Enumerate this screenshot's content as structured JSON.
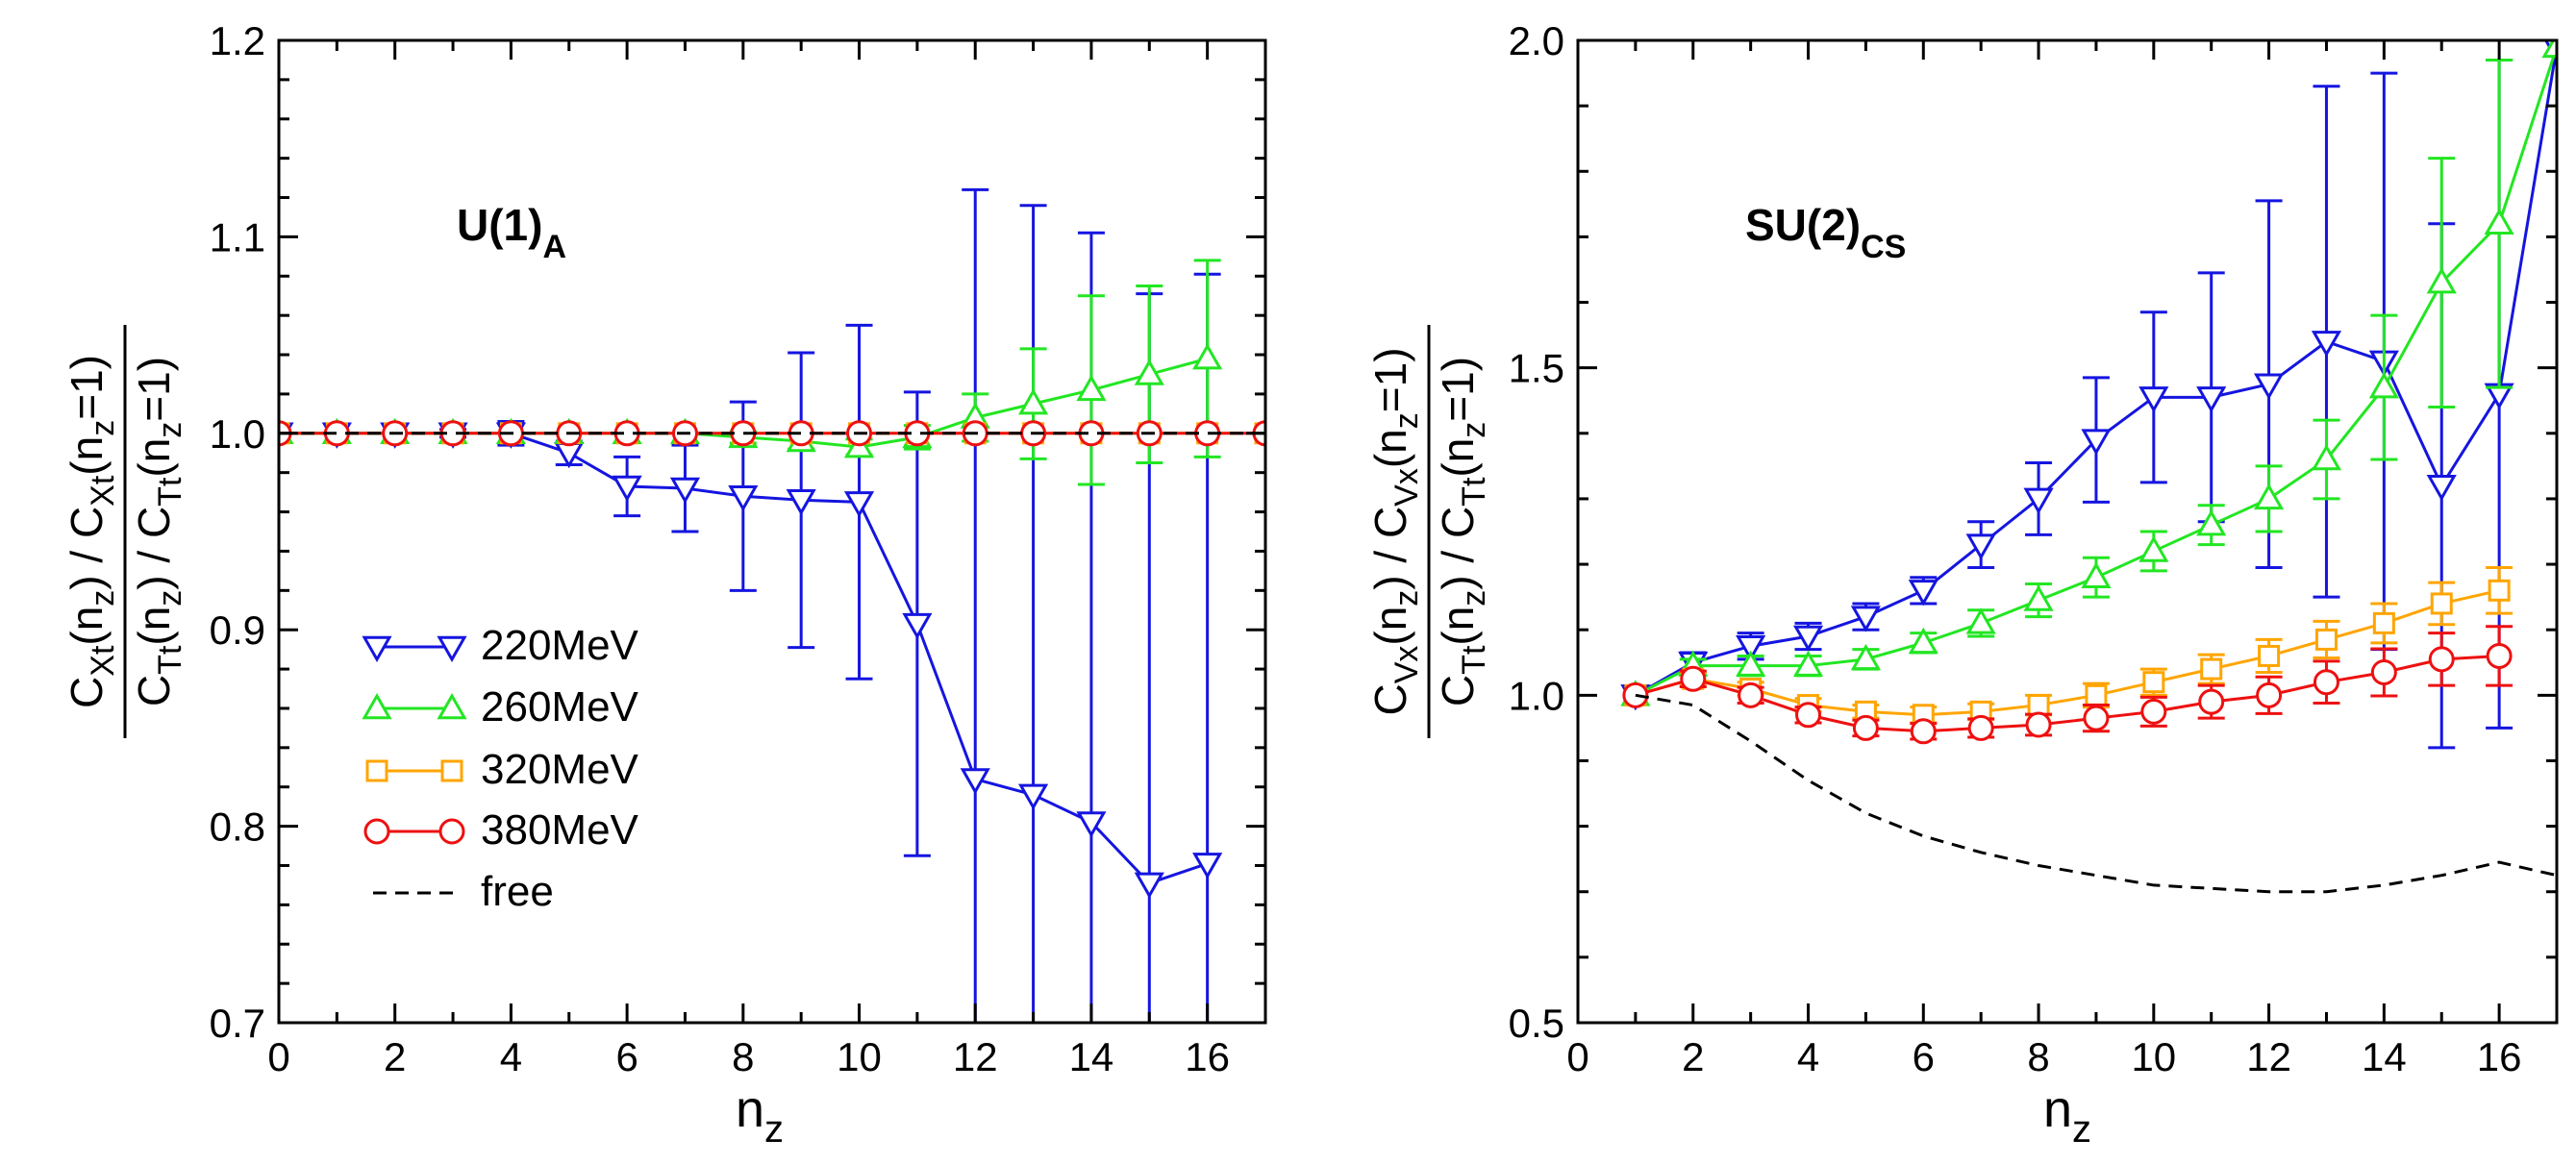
{
  "colors": {
    "220MeV": "#1515e0",
    "260MeV": "#22e622",
    "320MeV": "#ffa500",
    "380MeV": "#ee1010",
    "free": "#000000"
  },
  "chart_data": [
    {
      "type": "line",
      "panel": "left",
      "annotation": {
        "main": "U(1)",
        "sub": "A"
      },
      "ylabel": {
        "num": "C_Xt(n_z) / C_Xt(n_z=1)",
        "den": "C_Tt(n_z) / C_Tt(n_z=1)"
      },
      "xlabel": "n_z",
      "xlim": [
        0,
        17
      ],
      "ylim": [
        0.7,
        1.2
      ],
      "xticks": [
        "0",
        "2",
        "4",
        "6",
        "8",
        "10",
        "12",
        "14",
        "16"
      ],
      "yticks": [
        "0.7",
        "0.8",
        "0.9",
        "1.0",
        "1.1",
        "1.2"
      ],
      "legend": {
        "position": "center-left",
        "entries": [
          "220MeV",
          "260MeV",
          "320MeV",
          "380MeV",
          "free"
        ]
      },
      "series": [
        {
          "name": "220MeV",
          "marker": "triangle-down",
          "x": [
            0,
            1,
            2,
            3,
            4,
            5,
            6,
            7,
            8,
            9,
            10,
            11,
            12,
            13,
            14,
            15,
            16
          ],
          "y": [
            1.0,
            1.0,
            1.0,
            1.0,
            1.0,
            0.99,
            0.973,
            0.972,
            0.968,
            0.966,
            0.965,
            0.903,
            0.824,
            0.816,
            0.802,
            0.771,
            0.781
          ],
          "err": [
            0,
            0,
            0,
            0.002,
            0.006,
            0.006,
            0.015,
            0.022,
            0.048,
            0.075,
            0.09,
            0.118,
            0.3,
            0.3,
            0.3,
            0.3,
            0.3
          ]
        },
        {
          "name": "260MeV",
          "marker": "triangle-up",
          "x": [
            0,
            1,
            2,
            3,
            4,
            5,
            6,
            7,
            8,
            9,
            10,
            11,
            12,
            13,
            14,
            15,
            16
          ],
          "y": [
            1.0,
            1.0,
            1.0,
            1.0,
            1.0,
            1.0,
            1.0,
            1.0,
            0.998,
            0.996,
            0.993,
            0.998,
            1.008,
            1.015,
            1.022,
            1.03,
            1.038
          ],
          "err": [
            0,
            0,
            0,
            0,
            0,
            0,
            0,
            0,
            0.003,
            0.004,
            0.004,
            0.006,
            0.012,
            0.028,
            0.048,
            0.045,
            0.05
          ]
        },
        {
          "name": "320MeV",
          "marker": "square",
          "x": [
            0,
            1,
            2,
            3,
            4,
            5,
            6,
            7,
            8,
            9,
            10,
            11,
            12,
            13,
            14,
            15,
            16,
            17
          ],
          "y": [
            1,
            1,
            1,
            1,
            1,
            1,
            1,
            1,
            1,
            1,
            1,
            1,
            1,
            1,
            1,
            1,
            1,
            1
          ],
          "err": [
            0,
            0,
            0,
            0,
            0,
            0,
            0,
            0,
            0,
            0,
            0,
            0,
            0,
            0,
            0,
            0,
            0,
            0
          ]
        },
        {
          "name": "380MeV",
          "marker": "circle",
          "x": [
            0,
            1,
            2,
            3,
            4,
            5,
            6,
            7,
            8,
            9,
            10,
            11,
            12,
            13,
            14,
            15,
            16,
            17
          ],
          "y": [
            1,
            1,
            1,
            1,
            1,
            1,
            1,
            1,
            1,
            1,
            1,
            1,
            1,
            1,
            1,
            1,
            1,
            1
          ],
          "err": [
            0,
            0,
            0,
            0,
            0,
            0,
            0,
            0,
            0,
            0,
            0,
            0,
            0,
            0,
            0,
            0,
            0,
            0
          ]
        },
        {
          "name": "free",
          "marker": "none",
          "style": "dashed",
          "x": [
            0,
            17
          ],
          "y": [
            1.0,
            1.0
          ]
        }
      ]
    },
    {
      "type": "line",
      "panel": "right",
      "annotation": {
        "main": "SU(2)",
        "sub": "CS"
      },
      "ylabel": {
        "num": "C_Vx(n_z) / C_Vx(n_z=1)",
        "den": "C_Tt(n_z) / C_Tt(n_z=1)"
      },
      "xlabel": "n_z",
      "xlim": [
        0,
        17
      ],
      "ylim": [
        0.5,
        2.0
      ],
      "xticks": [
        "0",
        "2",
        "4",
        "6",
        "8",
        "10",
        "12",
        "14",
        "16"
      ],
      "yticks": [
        "0.5",
        "1.0",
        "1.5",
        "2.0"
      ],
      "series": [
        {
          "name": "220MeV",
          "marker": "triangle-down",
          "x": [
            1,
            2,
            3,
            4,
            5,
            6,
            7,
            8,
            9,
            10,
            11,
            12,
            13,
            14,
            15,
            16,
            17
          ],
          "y": [
            1.0,
            1.05,
            1.075,
            1.09,
            1.12,
            1.16,
            1.23,
            1.3,
            1.39,
            1.455,
            1.455,
            1.475,
            1.54,
            1.51,
            1.32,
            1.46,
            1.99
          ],
          "err": [
            0,
            0.015,
            0.02,
            0.02,
            0.02,
            0.02,
            0.035,
            0.055,
            0.095,
            0.13,
            0.19,
            0.28,
            0.39,
            0.44,
            0.4,
            0.51,
            0
          ]
        },
        {
          "name": "260MeV",
          "marker": "triangle-up",
          "x": [
            1,
            2,
            3,
            4,
            5,
            6,
            7,
            8,
            9,
            10,
            11,
            12,
            13,
            14,
            15,
            16,
            17
          ],
          "y": [
            1.0,
            1.045,
            1.045,
            1.045,
            1.055,
            1.08,
            1.11,
            1.145,
            1.18,
            1.22,
            1.26,
            1.3,
            1.36,
            1.47,
            1.63,
            1.72,
            1.99
          ],
          "err": [
            0,
            0.01,
            0.015,
            0.015,
            0.015,
            0.015,
            0.02,
            0.025,
            0.03,
            0.03,
            0.03,
            0.05,
            0.06,
            0.11,
            0.19,
            0.25,
            0
          ]
        },
        {
          "name": "320MeV",
          "marker": "square",
          "x": [
            1,
            2,
            3,
            4,
            5,
            6,
            7,
            8,
            9,
            10,
            11,
            12,
            13,
            14,
            15,
            16
          ],
          "y": [
            1.0,
            1.025,
            1.01,
            0.985,
            0.975,
            0.97,
            0.975,
            0.985,
            1.0,
            1.02,
            1.04,
            1.06,
            1.085,
            1.11,
            1.14,
            1.16
          ],
          "err": [
            0,
            0.01,
            0.01,
            0.01,
            0.01,
            0.012,
            0.012,
            0.015,
            0.018,
            0.02,
            0.022,
            0.025,
            0.028,
            0.03,
            0.032,
            0.035
          ]
        },
        {
          "name": "380MeV",
          "marker": "circle",
          "x": [
            1,
            2,
            3,
            4,
            5,
            6,
            7,
            8,
            9,
            10,
            11,
            12,
            13,
            14,
            15,
            16
          ],
          "y": [
            1.0,
            1.025,
            1.0,
            0.97,
            0.95,
            0.945,
            0.95,
            0.955,
            0.965,
            0.975,
            0.99,
            1.0,
            1.02,
            1.035,
            1.055,
            1.06
          ],
          "err": [
            0,
            0.012,
            0.012,
            0.012,
            0.012,
            0.012,
            0.014,
            0.016,
            0.02,
            0.022,
            0.025,
            0.028,
            0.032,
            0.036,
            0.04,
            0.045
          ]
        },
        {
          "name": "free",
          "marker": "none",
          "style": "dashed",
          "x": [
            1,
            2,
            3,
            4,
            5,
            6,
            7,
            8,
            9,
            10,
            11,
            12,
            13,
            14,
            15,
            16,
            17
          ],
          "y": [
            1.0,
            0.985,
            0.93,
            0.87,
            0.82,
            0.785,
            0.76,
            0.74,
            0.725,
            0.71,
            0.705,
            0.7,
            0.7,
            0.71,
            0.725,
            0.745,
            0.725
          ]
        }
      ]
    }
  ]
}
